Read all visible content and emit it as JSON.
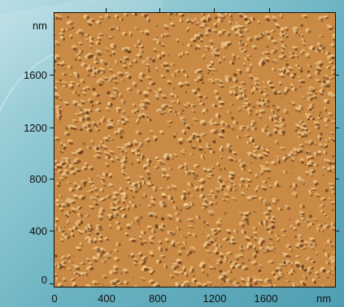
{
  "axes": {
    "y_unit": "nm",
    "x_unit": "nm",
    "y_ticks": [
      "0",
      "400",
      "800",
      "1200",
      "1600"
    ],
    "x_ticks": [
      "0",
      "400",
      "800",
      "1200",
      "1600"
    ]
  },
  "colors": {
    "surface_base": "#c98a45",
    "surface_light": "#f5cf91",
    "surface_dark": "#5b2f12",
    "background": "#7bbac8"
  }
}
